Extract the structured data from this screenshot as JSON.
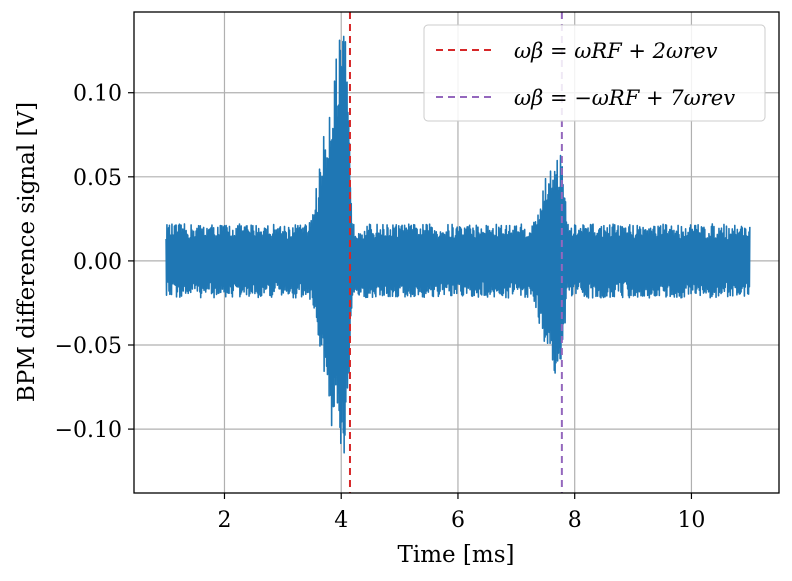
{
  "chart_data": {
    "type": "line",
    "xlabel": "Time [ms]",
    "ylabel": "BPM difference signal [V]",
    "xlim": [
      0.45,
      11.5
    ],
    "ylim": [
      -0.138,
      0.148
    ],
    "xticks": [
      2,
      4,
      6,
      8,
      10
    ],
    "xtick_labels": [
      "2",
      "4",
      "6",
      "8",
      "10"
    ],
    "yticks": [
      0.1,
      0.05,
      0.0,
      -0.05,
      -0.1
    ],
    "ytick_labels": [
      "0.10",
      "0.05",
      "0.00",
      "−0.05",
      "−0.10"
    ],
    "grid": true,
    "legend_position": "top-right",
    "colors": {
      "signal": "#1f77b4",
      "line1": "#d62728",
      "line2": "#9467bd",
      "grid": "#b0b0b0"
    },
    "signal": {
      "x_range": [
        1.0,
        11.0
      ],
      "baseline_amplitude": 0.022,
      "peaks": [
        {
          "x": 4.05,
          "upper": 0.136,
          "lower": -0.125
        },
        {
          "x": 7.75,
          "upper": 0.067,
          "lower": -0.07
        }
      ]
    },
    "vlines": [
      {
        "x": 4.15,
        "label": "ωβ = ωRF + 2ωrev",
        "color": "#d62728"
      },
      {
        "x": 7.78,
        "label": "ωβ = −ωRF + 7ωrev",
        "color": "#9467bd"
      }
    ]
  }
}
